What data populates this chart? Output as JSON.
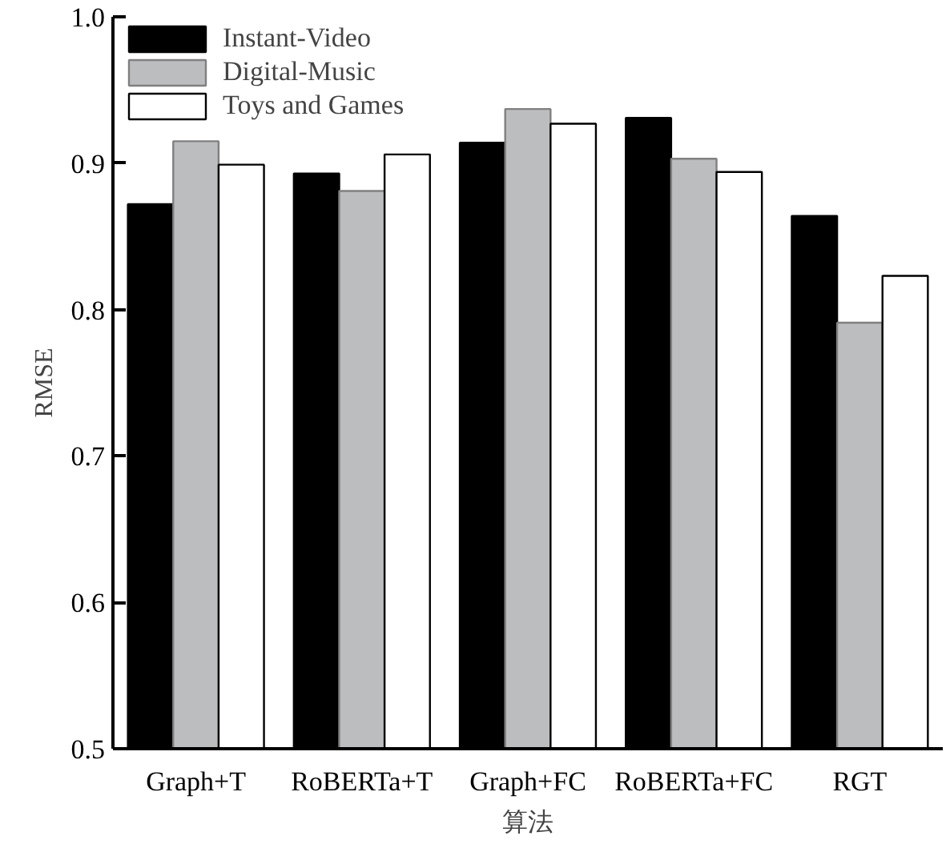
{
  "chart_data": {
    "type": "bar",
    "xlabel": "算法",
    "ylabel": "RMSE",
    "categories": [
      "Graph+T",
      "RoBERTa+T",
      "Graph+FC",
      "RoBERTa+FC",
      "RGT"
    ],
    "series": [
      {
        "name": "Instant-Video",
        "color": "#000000",
        "values": [
          0.872,
          0.893,
          0.914,
          0.931,
          0.864
        ]
      },
      {
        "name": "Digital-Music",
        "color": "#bcbdbf",
        "values": [
          0.915,
          0.881,
          0.937,
          0.903,
          0.791
        ]
      },
      {
        "name": "Toys and Games",
        "color": "#ffffff",
        "values": [
          0.899,
          0.906,
          0.927,
          0.894,
          0.823
        ]
      }
    ],
    "ylim": [
      0.5,
      1.0
    ],
    "yticks": [
      {
        "value": 0.5,
        "label": "0.5"
      },
      {
        "value": 0.6,
        "label": "0.6"
      },
      {
        "value": 0.7,
        "label": "0.7"
      },
      {
        "value": 0.8,
        "label": "0.8"
      },
      {
        "value": 0.9,
        "label": "0.9"
      },
      {
        "value": 1.0,
        "label": "1.0"
      }
    ],
    "grid": false,
    "legend": "top left"
  }
}
